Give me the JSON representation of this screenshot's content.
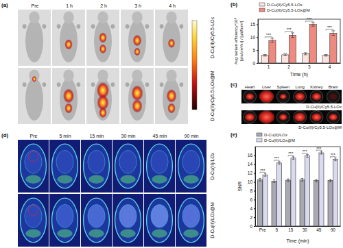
{
  "chart_data": [
    {
      "type": "bar",
      "x_label": "Time (h)",
      "y_label": [
        "Avg radiant efficiency*10⁸",
        "[p/s/cm²/sr] / [μW/cm²]"
      ],
      "categories": [
        "1",
        "2",
        "3",
        "4"
      ],
      "series": [
        {
          "name": "D-Cu(II)/Cy5.5-LOx",
          "color": "#fbe3df",
          "values": [
            3.0,
            3.2,
            3.6,
            3.0
          ],
          "errors": [
            0.3,
            0.4,
            0.4,
            0.3
          ]
        },
        {
          "name": "D-Cu(II)/Cy5.5-LOx@M",
          "color": "#ef8a80",
          "values": [
            8.8,
            10.8,
            15.0,
            11.6
          ],
          "errors": [
            0.8,
            0.9,
            0.7,
            0.9
          ]
        }
      ],
      "ylim": [
        0,
        17
      ],
      "yticks": [
        0,
        5,
        10,
        15
      ],
      "legend": "top left",
      "annotations": [
        "***",
        "***",
        "***",
        "***"
      ]
    },
    {
      "type": "bar",
      "x_label": "Time (min)",
      "y_label": [
        "SNR"
      ],
      "categories": [
        "Pre",
        "5",
        "15",
        "30",
        "45",
        "90"
      ],
      "series": [
        {
          "name": "D-Cu(II)/LOx",
          "color": "#a9a9b3",
          "values": [
            10.5,
            10.2,
            10.4,
            10.5,
            10.3,
            10.3
          ],
          "errors": [
            0.3,
            0.3,
            0.3,
            0.3,
            0.3,
            0.3
          ]
        },
        {
          "name": "D-Cu(II)/LOx@M",
          "color": "#d9d9f0",
          "values": [
            11.6,
            14.3,
            15.4,
            15.9,
            16.6,
            15.1
          ],
          "errors": [
            0.3,
            0.3,
            0.3,
            0.3,
            0.3,
            0.3
          ]
        }
      ],
      "ylim": [
        0,
        18
      ],
      "yticks": [
        0,
        2,
        4,
        6,
        8,
        10,
        12,
        14,
        16
      ],
      "legend": "top left",
      "annotations": [
        "***",
        "***",
        "***",
        "***",
        "***",
        "***"
      ]
    }
  ],
  "figure": {
    "panel_labels": [
      "(a)",
      "(b)",
      "(c)",
      "(d)",
      "(e)"
    ],
    "panel_a": {
      "columns": [
        "Pre",
        "1 h",
        "2 h",
        "3 h",
        "4 h"
      ],
      "rows": [
        "D-Cu(II)/Cy5.5-LOx",
        "D-Cu(II)/Cy5.5-LOx@M"
      ]
    },
    "panel_c": {
      "columns": [
        "Heart",
        "Liver",
        "Spleen",
        "Lung",
        "Kidney",
        "Brain"
      ],
      "rows": [
        "D-Cu(II)/Cy5.5-LOx",
        "D-Cu(II)/Cy5.5-LOx@M"
      ]
    },
    "panel_d": {
      "columns": [
        "Pre",
        "5 min",
        "15 min",
        "30 min",
        "45 min",
        "90 min"
      ],
      "rows": [
        "D-Cu(II)/LOx",
        "D-Cu(II)/LOx@M"
      ]
    }
  }
}
